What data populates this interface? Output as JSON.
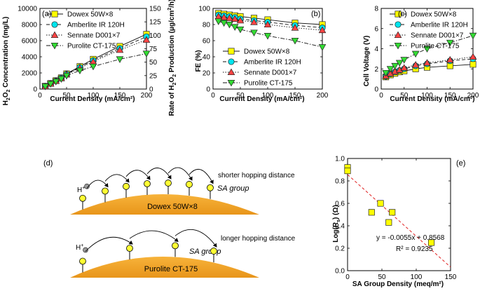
{
  "chart_data": [
    {
      "panel": "(a)",
      "type": "line",
      "xlabel": "Current Density (mA/cm²)",
      "ylabel_left": [
        "H",
        "2",
        "O",
        "2",
        " Concentration (mg/L)"
      ],
      "ylabel_right": [
        "Rate of H",
        "2",
        "O",
        "2",
        " Production (μg/cm",
        "2",
        "/h)"
      ],
      "xlim": [
        0,
        200
      ],
      "ylim": [
        0,
        10000
      ],
      "ylim_right": [
        0,
        150
      ],
      "xticks": [
        "0",
        "50",
        "100",
        "150",
        "200"
      ],
      "yticks": [
        "0",
        "2000",
        "4000",
        "6000",
        "8000",
        "10000"
      ],
      "yticks_right": [
        "0",
        "25",
        "50",
        "75",
        "100",
        "125",
        "150"
      ],
      "legend": "top-left",
      "x": [
        10,
        20,
        30,
        40,
        50,
        75,
        100,
        150,
        200
      ],
      "series": [
        {
          "name": "Dowex 50W×8",
          "marker": "square",
          "color": "#ffff00",
          "dash": "solid",
          "values": [
            350,
            700,
            1050,
            1400,
            1900,
            2800,
            3700,
            5300,
            6800
          ]
        },
        {
          "name": "Amberlite IR 120H",
          "marker": "circle",
          "color": "#00e5ee",
          "dash": "dash",
          "values": [
            340,
            680,
            1020,
            1380,
            1850,
            2700,
            3550,
            5050,
            6500
          ]
        },
        {
          "name": "Sennate D001×7",
          "marker": "triangle-up",
          "color": "#ff4444",
          "dash": "dot",
          "values": [
            330,
            660,
            990,
            1330,
            1800,
            2600,
            3400,
            4850,
            6100
          ]
        },
        {
          "name": "Purolite CT-175",
          "marker": "triangle-down",
          "color": "#33dd33",
          "dash": "dashdot",
          "values": [
            330,
            640,
            930,
            1250,
            1650,
            2300,
            2800,
            3700,
            4400
          ]
        }
      ]
    },
    {
      "panel": "(b)",
      "type": "line",
      "xlabel": "Current Density (mA/cm²)",
      "ylabel": "FE (%)",
      "xlim": [
        0,
        200
      ],
      "ylim": [
        0,
        100
      ],
      "xticks": [
        "0",
        "50",
        "100",
        "150",
        "200"
      ],
      "yticks": [
        "0",
        "20",
        "40",
        "60",
        "80",
        "100"
      ],
      "legend": "bottom-center",
      "x": [
        10,
        20,
        30,
        40,
        50,
        75,
        100,
        150,
        200
      ],
      "series": [
        {
          "name": "Dowex 50W×8",
          "marker": "square",
          "color": "#ffff00",
          "dash": "solid",
          "values": [
            94,
            93,
            92,
            91,
            90,
            88,
            86,
            82,
            80
          ]
        },
        {
          "name": "Amberlite IR 120H",
          "marker": "circle",
          "color": "#00e5ee",
          "dash": "dash",
          "values": [
            92,
            91,
            90,
            89,
            87,
            85,
            83,
            79,
            76
          ]
        },
        {
          "name": "Sennate D001×7",
          "marker": "triangle-up",
          "color": "#ff4444",
          "dash": "dot",
          "values": [
            90,
            89,
            88,
            87,
            85,
            83,
            80,
            76,
            73
          ]
        },
        {
          "name": "Purolite CT-175",
          "marker": "triangle-down",
          "color": "#33dd33",
          "dash": "dashdot",
          "values": [
            84,
            82,
            80,
            77,
            74,
            70,
            66,
            60,
            52
          ]
        }
      ]
    },
    {
      "panel": "(c)",
      "type": "line",
      "xlabel": "Current Density (mA/cm²)",
      "ylabel": "Cell Voltage (V)",
      "xlim": [
        0,
        200
      ],
      "ylim": [
        0,
        8
      ],
      "xticks": [
        "0",
        "50",
        "100",
        "150",
        "200"
      ],
      "yticks": [
        "0",
        "2",
        "4",
        "6",
        "8"
      ],
      "legend": "top-left",
      "x": [
        10,
        20,
        30,
        40,
        50,
        75,
        100,
        150,
        200
      ],
      "series": [
        {
          "name": "Dowex 50W×8",
          "marker": "square",
          "color": "#ffff00",
          "dash": "solid",
          "values": [
            1.2,
            1.4,
            1.55,
            1.7,
            1.8,
            2.0,
            2.15,
            2.3,
            2.45
          ]
        },
        {
          "name": "Amberlite IR 120H",
          "marker": "circle",
          "color": "#00e5ee",
          "dash": "dash",
          "values": [
            1.25,
            1.5,
            1.7,
            1.85,
            2.0,
            2.3,
            2.5,
            2.8,
            3.0
          ]
        },
        {
          "name": "Sennate D001×7",
          "marker": "triangle-up",
          "color": "#ff4444",
          "dash": "dot",
          "values": [
            1.3,
            1.55,
            1.75,
            1.9,
            2.1,
            2.4,
            2.6,
            2.9,
            3.2
          ]
        },
        {
          "name": "Purolite CT-175",
          "marker": "triangle-down",
          "color": "#33dd33",
          "dash": "dashdot",
          "values": [
            1.6,
            2.0,
            2.3,
            2.6,
            2.9,
            3.5,
            4.0,
            4.6,
            5.3
          ]
        }
      ]
    },
    {
      "panel": "(e)",
      "type": "scatter",
      "xlabel": "SA Group Density (meq/m²)",
      "ylabel": [
        "Log(R",
        "s",
        ") (Ω)"
      ],
      "xlim": [
        0,
        150
      ],
      "ylim": [
        0.0,
        1.0
      ],
      "xticks": [
        "0",
        "50",
        "100",
        "150"
      ],
      "yticks": [
        "0.0",
        "0.2",
        "0.4",
        "0.6",
        "0.8",
        "1.0"
      ],
      "marker_color": "#ffff00",
      "points": [
        [
          0,
          0.92
        ],
        [
          0,
          0.89
        ],
        [
          35,
          0.52
        ],
        [
          48,
          0.6
        ],
        [
          60,
          0.43
        ],
        [
          65,
          0.52
        ],
        [
          122,
          0.25
        ]
      ],
      "fit": {
        "slope": -0.0055,
        "intercept": 0.8568
      },
      "equation": "y = -0.0055x + 0.8568",
      "r2": "R² = 0.9235"
    }
  ],
  "diagram": {
    "panel": "(d)",
    "proton": "H",
    "proton_charge": "+",
    "top": {
      "annotation": "shorter hopping distance",
      "group": "SA group",
      "resin": "Dowex 50W×8"
    },
    "bottom": {
      "annotation": "longer hopping distance",
      "group": "SA group",
      "resin": "Purolite CT-175"
    },
    "colors": {
      "resin": "#f5a623",
      "site": "#ffff33",
      "proton": "#999999"
    }
  }
}
